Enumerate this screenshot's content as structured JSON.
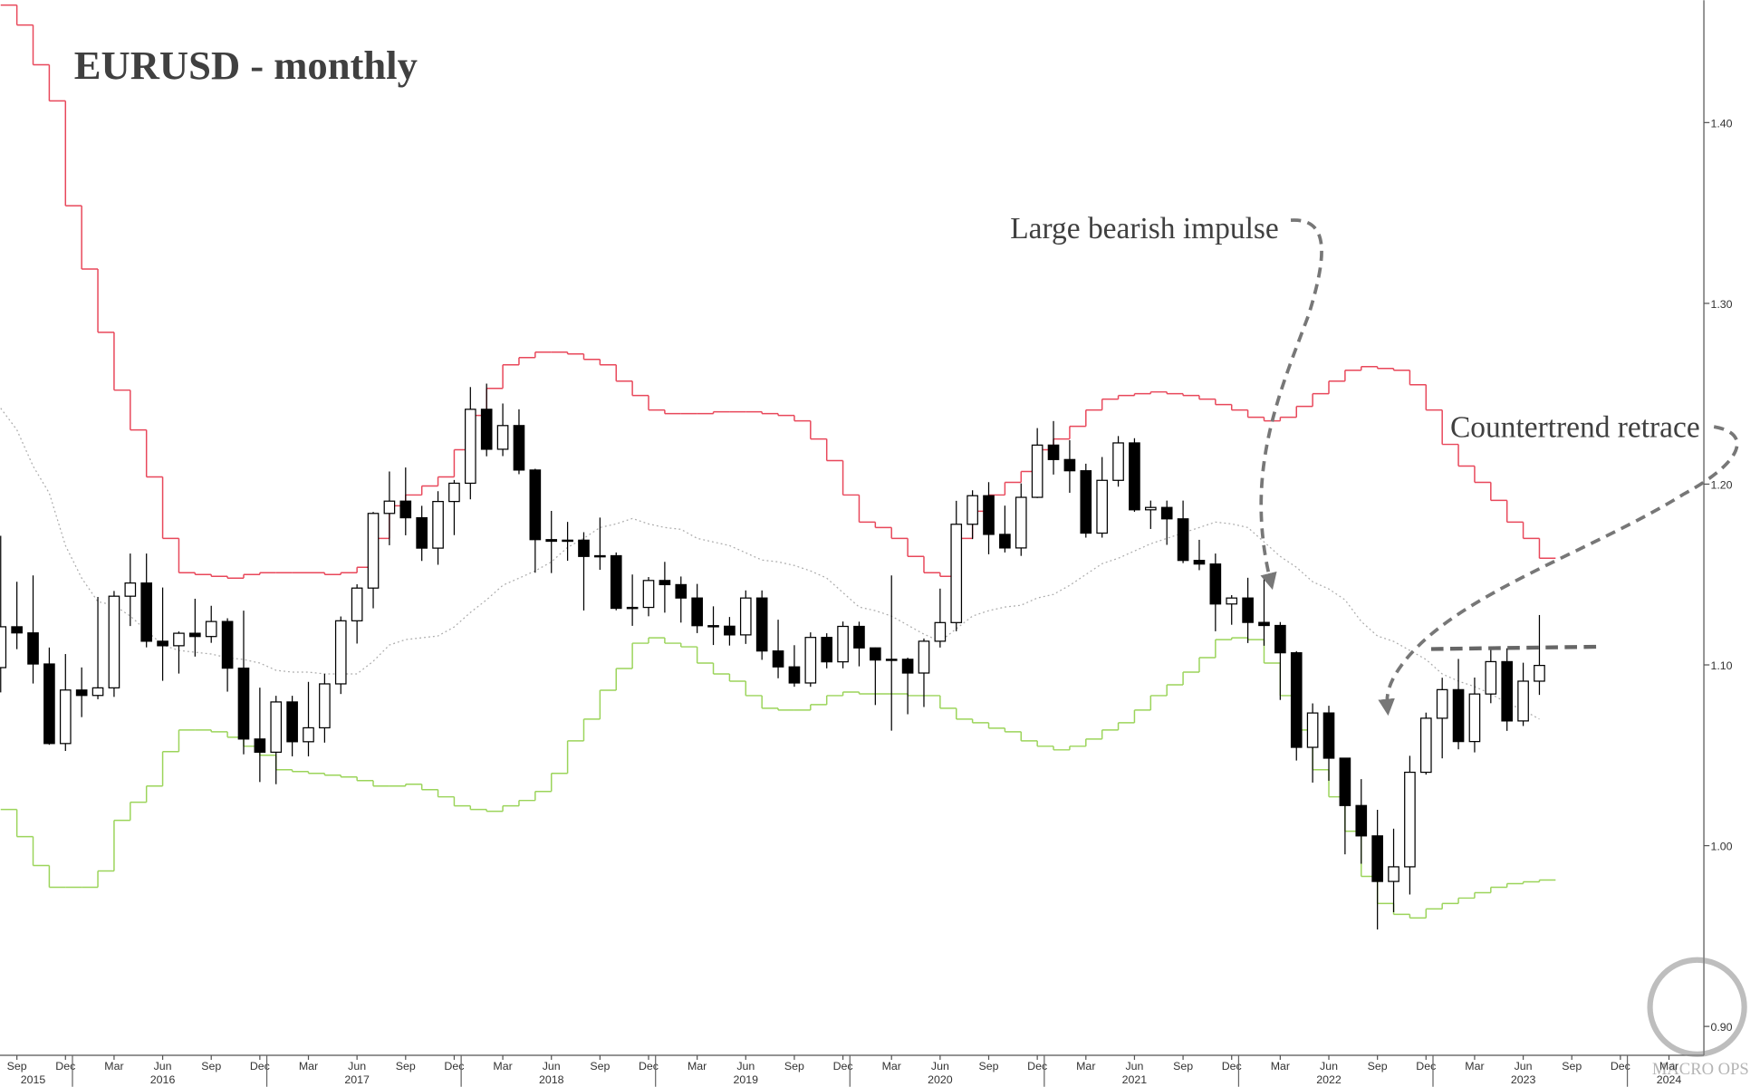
{
  "chart_data": {
    "type": "candlestick",
    "title": "EURUSD - monthly",
    "annotations": [
      "Large bearish impulse",
      "Countertrend retrace"
    ],
    "watermark": "MACRO OPS",
    "categories": [
      null,
      "Sep",
      null,
      null,
      "Dec",
      null,
      null,
      "Mar",
      null,
      null,
      "Jun",
      null,
      null,
      "Sep",
      null,
      null,
      "Dec",
      null,
      null,
      "Mar",
      null,
      null,
      "Jun",
      null,
      null,
      "Sep",
      null,
      null,
      "Dec",
      null,
      null,
      "Mar",
      null,
      null,
      "Jun",
      null,
      null,
      "Sep",
      null,
      null,
      "Dec",
      null,
      null,
      "Mar",
      null,
      null,
      "Jun",
      null,
      null,
      "Sep",
      null,
      null,
      "Dec",
      null,
      null,
      "Mar",
      null,
      null,
      "Jun",
      null,
      null,
      "Sep",
      null,
      null,
      "Dec",
      null,
      null,
      "Mar",
      null,
      null,
      "Jun",
      null,
      null,
      "Sep",
      null,
      null,
      "Dec",
      null,
      null,
      "Mar",
      null,
      null,
      "Jun",
      null,
      null,
      "Sep",
      null,
      null,
      "Dec",
      null,
      null,
      "Mar",
      null,
      null,
      "Jun",
      null,
      null,
      "Sep",
      null,
      null,
      "Dec",
      null,
      null,
      "Mar",
      null
    ],
    "year_labels": [
      null,
      null,
      "2015",
      null,
      null,
      null,
      null,
      null,
      null,
      null,
      "2016",
      null,
      null,
      null,
      null,
      null,
      null,
      null,
      null,
      null,
      null,
      null,
      "2017",
      null,
      null,
      null,
      null,
      null,
      null,
      null,
      null,
      null,
      null,
      null,
      "2018",
      null,
      null,
      null,
      null,
      null,
      null,
      null,
      null,
      null,
      null,
      null,
      "2019",
      null,
      null,
      null,
      null,
      null,
      null,
      null,
      null,
      null,
      null,
      null,
      "2020",
      null,
      null,
      null,
      null,
      null,
      null,
      null,
      null,
      null,
      null,
      null,
      "2021",
      null,
      null,
      null,
      null,
      null,
      null,
      null,
      null,
      null,
      null,
      null,
      "2022",
      null,
      null,
      null,
      null,
      null,
      null,
      null,
      null,
      null,
      null,
      null,
      "2023",
      null,
      null,
      null,
      null,
      null,
      null,
      null,
      null,
      "2024",
      null
    ],
    "open": [
      1.0985,
      1.1211,
      1.1177,
      1.1005,
      1.0565,
      1.0861,
      1.0831,
      1.0873,
      1.138,
      1.1453,
      1.1131,
      1.1106,
      1.1175,
      1.1157,
      1.124,
      1.0982,
      1.059,
      1.0517,
      1.0795,
      1.0575,
      1.0652,
      1.0895,
      1.1244,
      1.1425,
      1.1838,
      1.1906,
      1.1814,
      1.1646,
      1.1904,
      1.2005,
      1.2414,
      1.2193,
      1.2324,
      1.2078,
      1.1693,
      1.1684,
      1.169,
      1.16,
      1.1604,
      1.1313,
      1.1318,
      1.1467,
      1.1444,
      1.137,
      1.1217,
      1.1214,
      1.1166,
      1.137,
      1.1077,
      1.0989,
      1.09,
      1.1152,
      1.1017,
      1.1213,
      1.1094,
      1.1027,
      1.1031,
      1.0955,
      1.1131,
      1.1234,
      1.1778,
      1.1936,
      1.1722,
      1.1647,
      1.1927,
      1.2216,
      1.2136,
      1.2074,
      1.1729,
      1.2021,
      1.2228,
      1.1858,
      1.1871,
      1.1808,
      1.1578,
      1.1558,
      1.1337,
      1.137,
      1.1235,
      1.1218,
      1.1067,
      1.0544,
      1.0734,
      1.0484,
      1.0222,
      1.0054,
      0.9802,
      0.9883,
      1.0406,
      1.0705,
      1.0863,
      1.0576,
      1.0839,
      1.1018,
      1.069,
      1.091,
      null,
      null,
      null,
      null,
      null,
      null,
      null,
      null,
      null
    ],
    "high": [
      1.1714,
      1.146,
      1.1495,
      1.1096,
      1.106,
      1.0986,
      1.1376,
      1.1409,
      1.1616,
      1.1616,
      1.1428,
      1.1185,
      1.1366,
      1.1327,
      1.1258,
      1.13,
      1.0874,
      1.0829,
      1.0829,
      1.0906,
      1.0951,
      1.1268,
      1.1446,
      1.1846,
      1.207,
      1.2092,
      1.188,
      1.1961,
      1.2023,
      1.2537,
      1.2556,
      1.2446,
      1.2414,
      1.2085,
      1.1852,
      1.1791,
      1.1734,
      1.1815,
      1.1622,
      1.15,
      1.1486,
      1.157,
      1.1489,
      1.1448,
      1.1324,
      1.1265,
      1.1412,
      1.1412,
      1.125,
      1.1109,
      1.118,
      1.1175,
      1.124,
      1.1239,
      1.1096,
      1.1495,
      1.104,
      1.1146,
      1.1422,
      1.1908,
      1.1966,
      1.2011,
      1.1881,
      1.2004,
      1.231,
      1.2349,
      1.2243,
      1.2113,
      1.215,
      1.2266,
      1.2254,
      1.1909,
      1.1909,
      1.1909,
      1.1692,
      1.1616,
      1.1386,
      1.1482,
      1.1495,
      1.1237,
      1.1076,
      1.0787,
      1.0774,
      1.0486,
      1.0368,
      1.0198,
      1.0094,
      1.0497,
      1.0736,
      1.0929,
      1.1033,
      1.093,
      1.1095,
      1.1092,
      1.1012,
      1.1276,
      null,
      null,
      null,
      null,
      null,
      null,
      null,
      null,
      null
    ],
    "low": [
      1.0848,
      1.1087,
      1.0897,
      1.0558,
      1.0524,
      1.0711,
      1.081,
      1.0823,
      1.1215,
      1.1097,
      1.0912,
      1.0952,
      1.1046,
      1.1122,
      1.0852,
      1.0505,
      1.0352,
      1.034,
      1.0494,
      1.0494,
      1.057,
      1.0839,
      1.1118,
      1.1313,
      1.1662,
      1.1717,
      1.1575,
      1.1554,
      1.1718,
      1.1916,
      1.2154,
      1.2155,
      1.2055,
      1.151,
      1.1508,
      1.1576,
      1.1301,
      1.1526,
      1.1302,
      1.1216,
      1.1269,
      1.1289,
      1.1234,
      1.1176,
      1.111,
      1.1107,
      1.1116,
      1.1028,
      1.0926,
      1.0879,
      1.0879,
      1.0981,
      1.0981,
      1.0992,
      1.0778,
      1.0636,
      1.0727,
      1.0767,
      1.1096,
      1.1186,
      1.1696,
      1.1612,
      1.1622,
      1.1603,
      1.1923,
      1.2053,
      1.1952,
      1.1704,
      1.1704,
      1.1986,
      1.1847,
      1.1752,
      1.1664,
      1.1563,
      1.1524,
      1.1186,
      1.1222,
      1.1121,
      1.1106,
      1.0806,
      1.0471,
      1.0349,
      1.0359,
      0.9952,
      0.99,
      0.9536,
      0.9632,
      0.973,
      1.0393,
      1.0483,
      1.0533,
      1.0516,
      1.0788,
      1.0635,
      1.0662,
      1.0834,
      null,
      null,
      null,
      null,
      null,
      null,
      null,
      null,
      null
    ],
    "close": [
      1.1211,
      1.1177,
      1.1005,
      1.0565,
      1.0861,
      1.0831,
      1.0873,
      1.138,
      1.1453,
      1.1131,
      1.1106,
      1.1175,
      1.1157,
      1.124,
      1.0982,
      1.059,
      1.0517,
      1.0795,
      1.0575,
      1.0652,
      1.0895,
      1.1244,
      1.1425,
      1.1838,
      1.1906,
      1.1814,
      1.1646,
      1.1904,
      1.2005,
      1.2414,
      1.2193,
      1.2324,
      1.2078,
      1.1693,
      1.1684,
      1.169,
      1.16,
      1.1604,
      1.1313,
      1.1318,
      1.1467,
      1.1444,
      1.137,
      1.1217,
      1.1214,
      1.1166,
      1.137,
      1.1077,
      1.0989,
      1.09,
      1.1152,
      1.1017,
      1.1213,
      1.1094,
      1.1027,
      1.1031,
      1.0955,
      1.1131,
      1.1234,
      1.1778,
      1.1936,
      1.1722,
      1.1647,
      1.1927,
      1.2216,
      1.2136,
      1.2074,
      1.1729,
      1.2021,
      1.2228,
      1.1858,
      1.1871,
      1.1808,
      1.1578,
      1.1558,
      1.1337,
      1.137,
      1.1235,
      1.1218,
      1.1067,
      1.0544,
      1.0734,
      1.0484,
      1.0222,
      1.0054,
      0.9802,
      0.9883,
      1.0406,
      1.0705,
      1.0863,
      1.0576,
      1.0839,
      1.1018,
      1.069,
      1.091,
      1.0997,
      null,
      null,
      null,
      null,
      null,
      null,
      null,
      null,
      null
    ],
    "up_color": "#ffffff",
    "down_color": "#000000",
    "bands": {
      "upper": {
        "color": "#e8475a",
        "values": [
          1.465,
          1.454,
          1.432,
          1.412,
          1.354,
          1.319,
          1.284,
          1.252,
          1.23,
          1.204,
          1.17,
          1.151,
          1.15,
          1.149,
          1.148,
          1.15,
          1.151,
          1.151,
          1.151,
          1.151,
          1.15,
          1.151,
          1.154,
          1.17,
          1.188,
          1.194,
          1.199,
          1.204,
          1.219,
          1.238,
          1.253,
          1.266,
          1.27,
          1.273,
          1.273,
          1.272,
          1.269,
          1.266,
          1.257,
          1.249,
          1.241,
          1.239,
          1.239,
          1.239,
          1.24,
          1.24,
          1.24,
          1.239,
          1.238,
          1.235,
          1.225,
          1.213,
          1.194,
          1.179,
          1.176,
          1.17,
          1.16,
          1.151,
          1.149,
          1.17,
          1.185,
          1.194,
          1.201,
          1.207,
          1.219,
          1.225,
          1.232,
          1.241,
          1.247,
          1.249,
          1.25,
          1.251,
          1.25,
          1.249,
          1.247,
          1.244,
          1.241,
          1.237,
          1.235,
          1.237,
          1.243,
          1.25,
          1.257,
          1.263,
          1.265,
          1.264,
          1.263,
          1.255,
          1.241,
          1.222,
          1.21,
          1.201,
          1.191,
          1.179,
          1.17,
          1.159,
          null,
          null,
          null,
          null,
          null,
          null,
          null,
          null,
          null
        ]
      },
      "middle": {
        "color": "#aaaaaa",
        "values": [
          1.242,
          1.23,
          1.21,
          1.195,
          1.166,
          1.148,
          1.135,
          1.133,
          1.127,
          1.119,
          1.111,
          1.108,
          1.107,
          1.106,
          1.104,
          1.103,
          1.101,
          1.097,
          1.096,
          1.096,
          1.095,
          1.095,
          1.095,
          1.102,
          1.111,
          1.114,
          1.115,
          1.116,
          1.121,
          1.129,
          1.136,
          1.144,
          1.148,
          1.152,
          1.157,
          1.165,
          1.17,
          1.176,
          1.178,
          1.181,
          1.178,
          1.176,
          1.175,
          1.17,
          1.168,
          1.166,
          1.162,
          1.158,
          1.157,
          1.155,
          1.152,
          1.148,
          1.14,
          1.132,
          1.13,
          1.127,
          1.122,
          1.117,
          1.113,
          1.12,
          1.127,
          1.13,
          1.132,
          1.133,
          1.137,
          1.139,
          1.144,
          1.15,
          1.156,
          1.159,
          1.163,
          1.167,
          1.17,
          1.173,
          1.176,
          1.179,
          1.178,
          1.176,
          1.168,
          1.16,
          1.154,
          1.146,
          1.142,
          1.136,
          1.124,
          1.116,
          1.113,
          1.108,
          1.103,
          1.095,
          1.091,
          1.088,
          1.084,
          1.079,
          1.075,
          1.07,
          null,
          null,
          null,
          null,
          null,
          null,
          null,
          null,
          null
        ]
      },
      "lower": {
        "color": "#9bd45a",
        "values": [
          1.02,
          1.005,
          0.989,
          0.977,
          0.977,
          0.977,
          0.986,
          1.014,
          1.024,
          1.033,
          1.052,
          1.064,
          1.064,
          1.063,
          1.06,
          1.055,
          1.05,
          1.042,
          1.041,
          1.04,
          1.039,
          1.038,
          1.036,
          1.033,
          1.033,
          1.034,
          1.031,
          1.027,
          1.022,
          1.02,
          1.019,
          1.022,
          1.025,
          1.03,
          1.04,
          1.058,
          1.07,
          1.086,
          1.098,
          1.112,
          1.115,
          1.112,
          1.11,
          1.101,
          1.095,
          1.091,
          1.083,
          1.076,
          1.075,
          1.075,
          1.078,
          1.083,
          1.085,
          1.084,
          1.084,
          1.084,
          1.083,
          1.083,
          1.076,
          1.07,
          1.068,
          1.065,
          1.063,
          1.058,
          1.055,
          1.053,
          1.055,
          1.059,
          1.064,
          1.068,
          1.075,
          1.083,
          1.089,
          1.096,
          1.104,
          1.114,
          1.115,
          1.114,
          1.101,
          1.083,
          1.064,
          1.042,
          1.027,
          1.008,
          0.983,
          0.968,
          0.962,
          0.96,
          0.965,
          0.968,
          0.971,
          0.974,
          0.977,
          0.979,
          0.98,
          0.981,
          null,
          null,
          null,
          null,
          null,
          null,
          null,
          null,
          null
        ]
      }
    },
    "ylim": [
      0.884,
      1.4677
    ],
    "yticks": [
      {
        "value": 0.9,
        "label": "0.90"
      },
      {
        "value": 1.0,
        "label": "1.00"
      },
      {
        "value": 1.1,
        "label": "1.10"
      },
      {
        "value": 1.2,
        "label": "1.20"
      },
      {
        "value": 1.3,
        "label": "1.30"
      },
      {
        "value": 1.4,
        "label": "1.40"
      }
    ],
    "y_axis_side": "right",
    "grid": false
  }
}
